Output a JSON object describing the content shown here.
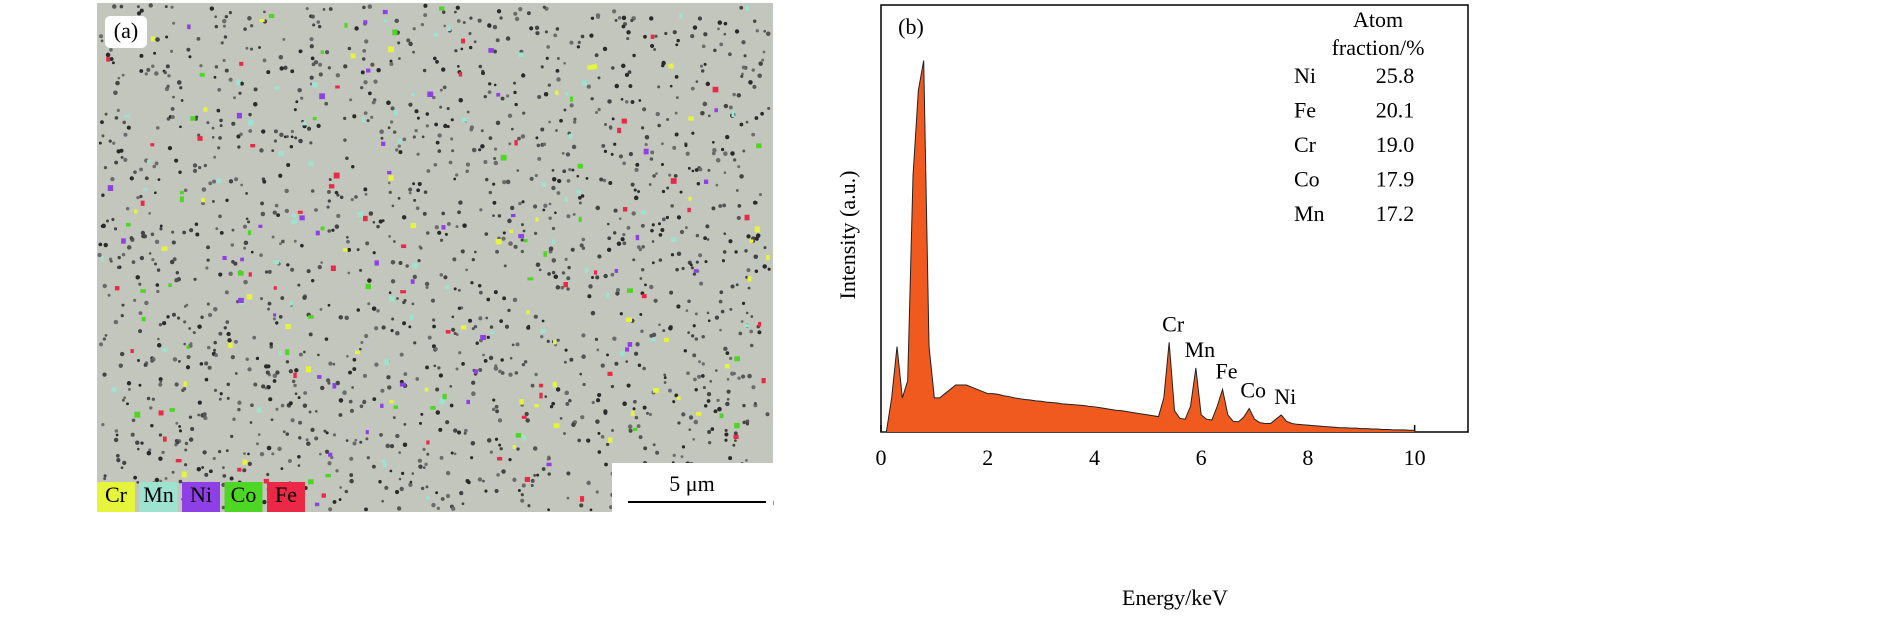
{
  "map": {
    "label": "(a)",
    "legend": [
      {
        "name": "Cr",
        "color": "#e6f53c"
      },
      {
        "name": "Mn",
        "color": "#9de3d0"
      },
      {
        "name": "Ni",
        "color": "#8f3fe6"
      },
      {
        "name": "Co",
        "color": "#4ed624"
      },
      {
        "name": "Fe",
        "color": "#eb2846"
      }
    ],
    "scale_bar": "5 μm"
  },
  "chart_data": {
    "type": "area",
    "label": "(b)",
    "x_label": "Energy/keV",
    "y_label": "Intensity (a.u.)",
    "x": [
      0,
      0.1,
      0.2,
      0.3,
      0.4,
      0.5,
      0.6,
      0.7,
      0.8,
      0.9,
      1,
      1.1,
      1.2,
      1.3,
      1.4,
      1.5,
      1.6,
      1.7,
      1.8,
      1.9,
      2,
      2.1,
      2.2,
      2.3,
      2.4,
      2.5,
      2.6,
      2.7,
      2.8,
      2.9,
      3,
      3.1,
      3.2,
      3.3,
      3.4,
      3.5,
      3.6,
      3.7,
      3.8,
      3.9,
      4,
      4.1,
      4.2,
      4.3,
      4.4,
      4.5,
      4.6,
      4.7,
      4.8,
      4.9,
      5,
      5.1,
      5.2,
      5.3,
      5.4,
      5.5,
      5.6,
      5.7,
      5.8,
      5.9,
      6,
      6.1,
      6.2,
      6.3,
      6.4,
      6.5,
      6.6,
      6.7,
      6.8,
      6.9,
      7,
      7.1,
      7.2,
      7.3,
      7.4,
      7.5,
      7.6,
      7.7,
      7.8,
      7.9,
      8,
      8.1,
      8.2,
      8.3,
      8.4,
      8.5,
      8.6,
      8.7,
      8.8,
      8.9,
      9,
      9.1,
      9.2,
      9.3,
      9.4,
      9.5,
      9.6,
      9.7,
      9.8,
      9.9,
      10
    ],
    "values": [
      0,
      0,
      8,
      20,
      8,
      12,
      60,
      80,
      87,
      20,
      8,
      8,
      9,
      10,
      11,
      11,
      11,
      10.5,
      10,
      9.5,
      9,
      9,
      8.8,
      8.5,
      8.3,
      8,
      7.8,
      7.6,
      7.5,
      7.3,
      7.2,
      7,
      6.9,
      6.8,
      6.6,
      6.5,
      6.4,
      6.3,
      6.2,
      6,
      5.9,
      5.7,
      5.5,
      5.3,
      5.1,
      5,
      4.8,
      4.6,
      4.4,
      4.2,
      4,
      3.8,
      3.6,
      8,
      21,
      5,
      3.2,
      3,
      6,
      15,
      4,
      3,
      2.8,
      6,
      10,
      4,
      2.5,
      2.4,
      3.5,
      5.5,
      3,
      2.2,
      2,
      2,
      3,
      4,
      2.5,
      2,
      1.8,
      1.7,
      1.6,
      1.5,
      1.4,
      1.3,
      1.2,
      1.1,
      1,
      1,
      0.9,
      0.9,
      0.8,
      0.8,
      0.7,
      0.7,
      0.6,
      0.6,
      0.5,
      0.5,
      0.5,
      0.4,
      0.4
    ],
    "color": "#f05a1e",
    "xlim": [
      0,
      11
    ],
    "ylim": [
      0,
      100
    ],
    "xticks": [
      0,
      2,
      4,
      6,
      8,
      10
    ],
    "annotations": [
      {
        "text": "Cr",
        "x": 5.4
      },
      {
        "text": "Mn",
        "x": 5.9
      },
      {
        "text": "Fe",
        "x": 6.4
      },
      {
        "text": "Co",
        "x": 6.9
      },
      {
        "text": "Ni",
        "x": 7.5
      }
    ],
    "table": {
      "header": [
        "Atom",
        "fraction/%"
      ],
      "rows": [
        [
          "Ni",
          "25.8"
        ],
        [
          "Fe",
          "20.1"
        ],
        [
          "Cr",
          "19.0"
        ],
        [
          "Co",
          "17.9"
        ],
        [
          "Mn",
          "17.2"
        ]
      ]
    }
  }
}
